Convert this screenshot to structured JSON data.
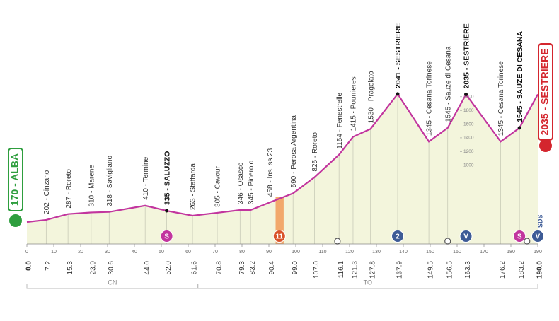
{
  "chart_data": {
    "type": "area",
    "x": [
      0,
      7.2,
      15.3,
      23.9,
      30.6,
      44.0,
      52.0,
      61.6,
      70.8,
      79.3,
      83.2,
      90.4,
      99.0,
      107.0,
      116.1,
      121.3,
      127.8,
      137.9,
      149.5,
      156.5,
      163.3,
      176.2,
      183.2,
      190.0
    ],
    "x_labels": [
      "0.0",
      "7.2",
      "15.3",
      "23.9",
      "30.6",
      "44.0",
      "52.0",
      "61.6",
      "70.8",
      "79.3",
      "83.2",
      "90.4",
      "99.0",
      "107.0",
      "116.1",
      "121.3",
      "127.8",
      "137.9",
      "149.5",
      "156.5",
      "163.3",
      "176.2",
      "183.2",
      "190.0"
    ],
    "values": [
      170,
      202,
      287,
      310,
      318,
      410,
      335,
      263,
      305,
      346,
      345,
      458,
      590,
      825,
      1154,
      1415,
      1530,
      2041,
      1345,
      1545,
      2035,
      1345,
      1545,
      2035
    ],
    "names": [
      null,
      "202 - Cinzano",
      "287 - Roreto",
      "310 - Marene",
      "318 - Savigliano",
      "410 - Termine",
      "335 - SALUZZO",
      "263 - Staffarda",
      "305 - Cavour",
      "346 - Osasco",
      "345 - Pinerolo",
      "458 - Ins. ss.23",
      "590 - Perosa Argentina",
      "825 - Roreto",
      "1154 - Fenestrelle",
      "1415 - Pourrieres",
      "1530 - Pragelato",
      "2041 - SESTRIERE",
      "1345 - Cesana Torinese",
      "1545 - Sauze di Cesana",
      "2035 - SESTRIERE",
      "1345 - Cesana Torinese",
      "1545 - SAUZE DI CESANA",
      null
    ],
    "bold_points": [
      6,
      17,
      20,
      22
    ],
    "color": "#c2359e",
    "fill": "#f3f5dc",
    "xlim": [
      0,
      190
    ],
    "xticks": [
      0,
      10,
      20,
      30,
      40,
      50,
      60,
      70,
      80,
      90,
      100,
      110,
      120,
      130,
      140,
      150,
      160,
      170,
      180,
      190
    ],
    "ylim": [
      -150,
      3000
    ],
    "yticks": [
      1000,
      1200,
      1400,
      1600,
      1800,
      2000
    ],
    "start": "170 - ALBA",
    "finish": "2035 - SESTRIERE",
    "regions": [
      {
        "name": "CN",
        "from": 0,
        "to": 63.6
      },
      {
        "name": "TO",
        "from": 63.6,
        "to": 190
      }
    ],
    "feed_zone": [
      92.5,
      95.5
    ],
    "markers": [
      {
        "km": 52.0,
        "label": "S",
        "color": "#c2359e"
      },
      {
        "km": 93.9,
        "label": "11",
        "color": "#d9532a"
      },
      {
        "km": 137.9,
        "label": "2",
        "color": "#3d5b96"
      },
      {
        "km": 163.3,
        "label": "V",
        "color": "#3d5b96"
      },
      {
        "km": 183.2,
        "label": "S",
        "color": "#c2359e"
      },
      {
        "km": 190.0,
        "label": "V",
        "color": "#3d5b96"
      }
    ],
    "small_markers": [
      115.5,
      156.5,
      186.0
    ],
    "finish_note": "SDS"
  }
}
